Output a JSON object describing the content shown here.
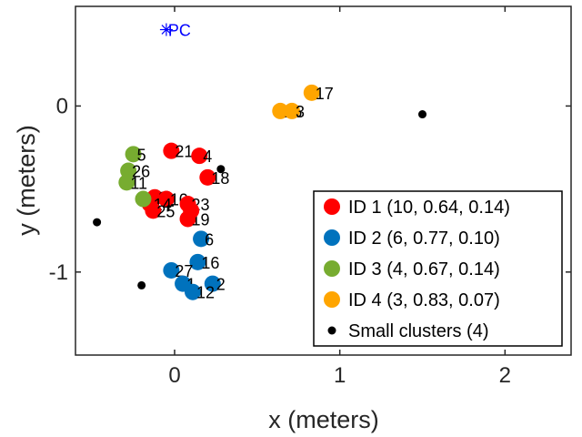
{
  "chart_data": {
    "type": "scatter",
    "xlabel": "x (meters)",
    "ylabel": "y (meters)",
    "xlim": [
      -0.6,
      2.4
    ],
    "ylim": [
      -1.5,
      0.6
    ],
    "xticks": [
      0,
      1,
      2
    ],
    "xtick_labels": [
      "0",
      "1",
      "2"
    ],
    "yticks": [
      -1,
      0
    ],
    "ytick_labels": [
      "-1",
      "0"
    ],
    "grid": false,
    "legend_position": "bottom-right",
    "reference_point": {
      "label": "PC",
      "x": -0.05,
      "y": 0.46,
      "color": "#0000ff",
      "marker": "asterisk"
    },
    "series": [
      {
        "name": "ID 1 (10, 0.64, 0.14)",
        "color": "#ff0000",
        "points": [
          {
            "x": -0.02,
            "y": -0.27,
            "label": "21"
          },
          {
            "x": 0.15,
            "y": -0.3,
            "label": "4"
          },
          {
            "x": 0.2,
            "y": -0.43,
            "label": "18"
          },
          {
            "x": -0.12,
            "y": -0.55,
            "label": "9"
          },
          {
            "x": -0.05,
            "y": -0.56,
            "label": "10"
          },
          {
            "x": 0.08,
            "y": -0.59,
            "label": "23"
          },
          {
            "x": -0.15,
            "y": -0.59,
            "label": "14"
          },
          {
            "x": -0.13,
            "y": -0.63,
            "label": "25"
          },
          {
            "x": 0.08,
            "y": -0.68,
            "label": "19"
          },
          {
            "x": 0.1,
            "y": -0.63,
            "label": ""
          }
        ]
      },
      {
        "name": "ID 2 (6, 0.77, 0.10)",
        "color": "#0072bd",
        "points": [
          {
            "x": 0.16,
            "y": -0.8,
            "label": "6"
          },
          {
            "x": 0.14,
            "y": -0.94,
            "label": "16"
          },
          {
            "x": -0.02,
            "y": -0.99,
            "label": "27"
          },
          {
            "x": 0.23,
            "y": -1.07,
            "label": "2"
          },
          {
            "x": 0.05,
            "y": -1.07,
            "label": "1"
          },
          {
            "x": 0.11,
            "y": -1.12,
            "label": "12"
          }
        ]
      },
      {
        "name": "ID 3 (4, 0.67, 0.14)",
        "color": "#77ac30",
        "points": [
          {
            "x": -0.25,
            "y": -0.29,
            "label": "5"
          },
          {
            "x": -0.28,
            "y": -0.39,
            "label": "26"
          },
          {
            "x": -0.29,
            "y": -0.46,
            "label": "11"
          },
          {
            "x": -0.19,
            "y": -0.56,
            "label": ""
          }
        ]
      },
      {
        "name": "ID 4 (3, 0.83, 0.07)",
        "color": "#ffa500",
        "points": [
          {
            "x": 0.83,
            "y": 0.08,
            "label": "17"
          },
          {
            "x": 0.64,
            "y": -0.03,
            "label": "15"
          },
          {
            "x": 0.71,
            "y": -0.03,
            "label": "3"
          }
        ]
      },
      {
        "name": "Small clusters (4)",
        "color": "#000000",
        "small": true,
        "points": [
          {
            "x": 1.5,
            "y": -0.05,
            "label": ""
          },
          {
            "x": 0.28,
            "y": -0.38,
            "label": ""
          },
          {
            "x": -0.47,
            "y": -0.7,
            "label": ""
          },
          {
            "x": -0.2,
            "y": -1.08,
            "label": ""
          }
        ]
      }
    ]
  }
}
